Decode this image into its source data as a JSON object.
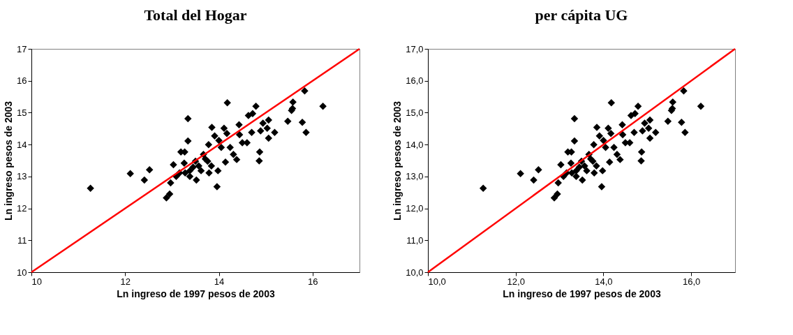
{
  "chart_data": [
    {
      "type": "scatter",
      "title": "Total del Hogar",
      "xlabel": "Ln ingreso de 1997 pesos de 2003",
      "ylabel": "Ln ingreso pesos de 2003",
      "grid": false,
      "xlim": [
        10,
        17
      ],
      "ylim": [
        10,
        17
      ],
      "xticks": [
        10,
        12,
        14,
        16
      ],
      "yticks": [
        10,
        11,
        12,
        13,
        14,
        15,
        16,
        17
      ],
      "series": [
        {
          "type": "scatter",
          "marker": "diamond",
          "color": "#000000",
          "x": [
            11.26,
            12.11,
            12.41,
            12.52,
            12.88,
            12.95,
            12.97,
            13.03,
            13.09,
            13.19,
            13.27,
            13.34,
            13.34,
            13.26,
            13.16,
            13.28,
            13.38,
            13.5,
            13.57,
            13.52,
            13.62,
            13.67,
            13.76,
            13.79,
            13.84,
            13.38,
            13.45,
            13.71,
            13.78,
            13.85,
            13.91,
            13.96,
            13.98,
            14.0,
            14.05,
            14.11,
            14.14,
            14.18,
            14.17,
            14.24,
            14.31,
            14.38,
            14.43,
            14.44,
            14.5,
            14.6,
            14.63,
            14.72,
            14.79,
            14.7,
            14.87,
            14.86,
            14.89,
            14.94,
            15.06,
            15.03,
            15.06,
            15.19,
            15.47,
            15.55,
            15.58,
            15.57,
            15.78,
            15.83,
            15.86,
            16.22
          ],
          "values": [
            12.63,
            13.09,
            12.89,
            13.21,
            12.33,
            12.45,
            12.8,
            13.37,
            13.0,
            13.77,
            13.77,
            14.81,
            14.11,
            13.42,
            13.11,
            13.11,
            13.0,
            13.48,
            13.33,
            12.89,
            13.18,
            13.69,
            13.48,
            13.11,
            13.33,
            13.18,
            13.29,
            13.55,
            14.0,
            14.54,
            14.27,
            12.68,
            13.18,
            14.13,
            13.91,
            14.51,
            13.45,
            15.31,
            14.35,
            13.91,
            13.69,
            13.53,
            14.62,
            14.31,
            14.06,
            14.06,
            14.91,
            14.97,
            15.2,
            14.38,
            13.77,
            13.49,
            14.43,
            14.67,
            14.77,
            14.51,
            14.2,
            14.38,
            14.73,
            15.07,
            15.33,
            15.13,
            14.7,
            15.68,
            14.38,
            15.2
          ]
        },
        {
          "type": "line",
          "color": "#ff0000",
          "x": [
            10,
            17
          ],
          "values": [
            10,
            17
          ]
        }
      ]
    },
    {
      "type": "scatter",
      "title": "per cápita UG",
      "xlabel": "Ln ingreso de 1997 pesos de 2003",
      "ylabel": "Ln ingreso pesos de 2003",
      "grid": false,
      "xlim": [
        10,
        17
      ],
      "ylim": [
        10,
        17
      ],
      "xticks": [
        {
          "value": 10,
          "label": "10,0"
        },
        {
          "value": 12,
          "label": "12,0"
        },
        {
          "value": 14,
          "label": "14,0"
        },
        {
          "value": 16,
          "label": "16,0"
        }
      ],
      "yticks": [
        {
          "value": 10,
          "label": "10,0"
        },
        {
          "value": 11,
          "label": "11,0"
        },
        {
          "value": 12,
          "label": "12,0"
        },
        {
          "value": 13,
          "label": "13,0"
        },
        {
          "value": 14,
          "label": "14,0"
        },
        {
          "value": 15,
          "label": "15,0"
        },
        {
          "value": 16,
          "label": "16,0"
        },
        {
          "value": 17,
          "label": "17,0"
        }
      ],
      "series": [
        {
          "type": "scatter",
          "marker": "diamond",
          "color": "#000000",
          "x": [
            11.26,
            12.11,
            12.41,
            12.52,
            12.88,
            12.95,
            12.97,
            13.03,
            13.09,
            13.19,
            13.27,
            13.34,
            13.34,
            13.26,
            13.16,
            13.28,
            13.38,
            13.5,
            13.57,
            13.52,
            13.62,
            13.67,
            13.76,
            13.79,
            13.84,
            13.38,
            13.45,
            13.71,
            13.78,
            13.85,
            13.91,
            13.96,
            13.98,
            14.0,
            14.05,
            14.11,
            14.14,
            14.18,
            14.17,
            14.24,
            14.31,
            14.38,
            14.43,
            14.44,
            14.5,
            14.6,
            14.63,
            14.72,
            14.79,
            14.7,
            14.87,
            14.86,
            14.89,
            14.94,
            15.06,
            15.03,
            15.06,
            15.19,
            15.47,
            15.55,
            15.58,
            15.57,
            15.78,
            15.83,
            15.86,
            16.22
          ],
          "values": [
            12.63,
            13.09,
            12.89,
            13.21,
            12.33,
            12.45,
            12.8,
            13.37,
            13.0,
            13.77,
            13.77,
            14.81,
            14.11,
            13.42,
            13.11,
            13.11,
            13.0,
            13.48,
            13.33,
            12.89,
            13.18,
            13.69,
            13.48,
            13.11,
            13.33,
            13.18,
            13.29,
            13.55,
            14.0,
            14.54,
            14.27,
            12.68,
            13.18,
            14.13,
            13.91,
            14.51,
            13.45,
            15.31,
            14.35,
            13.91,
            13.69,
            13.53,
            14.62,
            14.31,
            14.06,
            14.06,
            14.91,
            14.97,
            15.2,
            14.38,
            13.77,
            13.49,
            14.43,
            14.67,
            14.77,
            14.51,
            14.2,
            14.38,
            14.73,
            15.07,
            15.33,
            15.13,
            14.7,
            15.68,
            14.38,
            15.2
          ]
        },
        {
          "type": "line",
          "color": "#ff0000",
          "x": [
            10,
            17
          ],
          "values": [
            10,
            17
          ]
        }
      ]
    }
  ]
}
